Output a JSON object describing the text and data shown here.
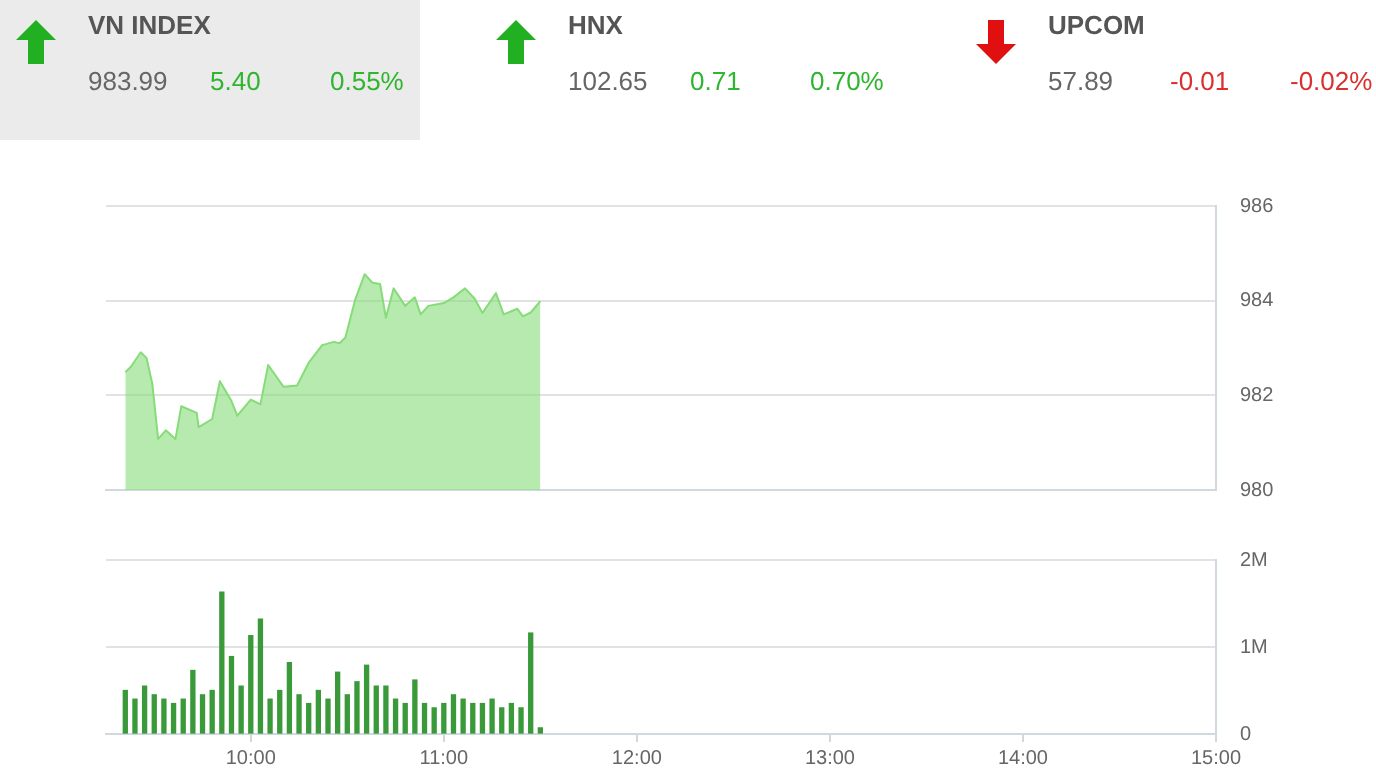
{
  "chart_data": [
    {
      "type": "other",
      "title": "VN INDEX",
      "annotations": [
        "983.99",
        "5.40",
        "0.55%"
      ],
      "colors": [
        "#666666",
        "#2fb52f",
        "#2fb52f"
      ]
    },
    {
      "type": "other",
      "title": "HNX",
      "annotations": [
        "102.65",
        "0.71",
        "0.70%"
      ],
      "colors": [
        "#666666",
        "#2fb52f",
        "#2fb52f"
      ]
    },
    {
      "type": "other",
      "title": "UPCOM",
      "annotations": [
        "57.89",
        "-0.01",
        "-0.02%"
      ],
      "colors": [
        "#666666",
        "#d93030",
        "#d93030"
      ]
    },
    {
      "type": "area",
      "x": [
        9.35,
        9.38,
        9.43,
        9.46,
        9.49,
        9.52,
        9.56,
        9.61,
        9.64,
        9.72,
        9.73,
        9.8,
        9.84,
        9.9,
        9.93,
        10.0,
        10.05,
        10.09,
        10.17,
        10.24,
        10.3,
        10.37,
        10.43,
        10.46,
        10.49,
        10.54,
        10.59,
        10.63,
        10.67,
        10.7,
        10.74,
        10.8,
        10.85,
        10.88,
        10.92,
        11.0,
        11.05,
        11.11,
        11.16,
        11.2,
        11.27,
        11.31,
        11.38,
        11.41,
        11.45,
        11.5
      ],
      "series": [
        {
          "color": "#86dc78",
          "values": [
            982.49,
            982.61,
            982.91,
            982.79,
            982.24,
            981.08,
            981.26,
            981.08,
            981.77,
            981.63,
            981.33,
            981.5,
            982.3,
            981.88,
            981.57,
            981.91,
            981.81,
            982.64,
            982.18,
            982.21,
            982.69,
            983.06,
            983.13,
            983.1,
            983.22,
            984.01,
            984.56,
            984.38,
            984.35,
            983.64,
            984.26,
            983.89,
            984.07,
            983.71,
            983.89,
            983.95,
            984.07,
            984.26,
            984.04,
            983.74,
            984.16,
            983.71,
            983.83,
            983.67,
            983.75,
            983.99
          ]
        }
      ],
      "xlim": [
        9.25,
        15
      ],
      "ylim": [
        980,
        986
      ],
      "yticks": [
        980,
        982,
        984,
        986
      ],
      "grid": "y",
      "tick_labels": "y"
    },
    {
      "type": "bar",
      "x": [
        9.35,
        9.4,
        9.45,
        9.5,
        9.55,
        9.6,
        9.65,
        9.7,
        9.75,
        9.8,
        9.85,
        9.9,
        9.95,
        10.0,
        10.05,
        10.1,
        10.15,
        10.2,
        10.25,
        10.3,
        10.35,
        10.4,
        10.45,
        10.5,
        10.55,
        10.6,
        10.65,
        10.7,
        10.75,
        10.8,
        10.85,
        10.9,
        10.95,
        11.0,
        11.05,
        11.1,
        11.15,
        11.2,
        11.25,
        11.3,
        11.35,
        11.4,
        11.45,
        11.5
      ],
      "series": [
        {
          "color": "#3a9a3a",
          "values": [
            0.5,
            0.4,
            0.55,
            0.45,
            0.4,
            0.35,
            0.4,
            0.73,
            0.45,
            0.5,
            1.63,
            0.89,
            0.55,
            1.13,
            1.32,
            0.4,
            0.5,
            0.82,
            0.45,
            0.35,
            0.5,
            0.4,
            0.71,
            0.45,
            0.6,
            0.79,
            0.55,
            0.55,
            0.4,
            0.35,
            0.62,
            0.35,
            0.3,
            0.35,
            0.45,
            0.4,
            0.35,
            0.35,
            0.4,
            0.3,
            0.35,
            0.3,
            1.16,
            0.07
          ]
        }
      ],
      "xlim": [
        9.25,
        15
      ],
      "xticks": [
        {
          "value": 10,
          "label": "10:00"
        },
        {
          "value": 11,
          "label": "11:00"
        },
        {
          "value": 12,
          "label": "12:00"
        },
        {
          "value": 13,
          "label": "13:00"
        },
        {
          "value": 14,
          "label": "14:00"
        },
        {
          "value": 15,
          "label": "15:00"
        }
      ],
      "ylim": [
        0,
        2
      ],
      "yticks": [
        0,
        {
          "value": 1,
          "label": "1M"
        },
        {
          "value": 2,
          "label": "2M"
        }
      ],
      "grid": "y"
    }
  ]
}
